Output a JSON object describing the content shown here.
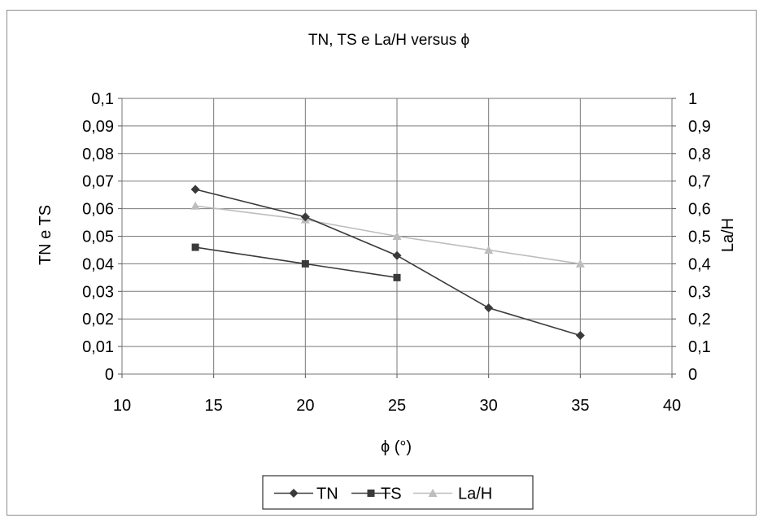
{
  "chart_data": {
    "type": "line",
    "title": "TN, TS e La/H versus ϕ",
    "xlabel": "ϕ (°)",
    "ylabel_left": "TN e TS",
    "ylabel_right": "La/H",
    "xlim": [
      10,
      40
    ],
    "x_ticks": [
      "10",
      "15",
      "20",
      "25",
      "30",
      "35",
      "40"
    ],
    "ylim_left": [
      0,
      0.1
    ],
    "y_ticks_left": [
      "0",
      "0,01",
      "0,02",
      "0,03",
      "0,04",
      "0,05",
      "0,06",
      "0,07",
      "0,08",
      "0,09",
      "0,1"
    ],
    "ylim_right": [
      0,
      1
    ],
    "y_ticks_right": [
      "0",
      "0,1",
      "0,2",
      "0,3",
      "0,4",
      "0,5",
      "0,6",
      "0,7",
      "0,8",
      "0,9",
      "1"
    ],
    "grid": true,
    "legend_position": "bottom",
    "series": [
      {
        "name": "TN",
        "axis": "left",
        "marker": "diamond",
        "color": "#3a3a3a",
        "x": [
          14,
          20,
          25,
          30,
          35
        ],
        "y": [
          0.067,
          0.057,
          0.043,
          0.024,
          0.014
        ]
      },
      {
        "name": "TS",
        "axis": "left",
        "marker": "square",
        "color": "#3a3a3a",
        "x": [
          14,
          20,
          25
        ],
        "y": [
          0.046,
          0.04,
          0.035
        ]
      },
      {
        "name": "La/H",
        "axis": "right",
        "marker": "triangle",
        "color": "#bdbdbd",
        "x": [
          14,
          20,
          25,
          30,
          35
        ],
        "y": [
          0.61,
          0.56,
          0.5,
          0.45,
          0.4
        ]
      }
    ]
  }
}
